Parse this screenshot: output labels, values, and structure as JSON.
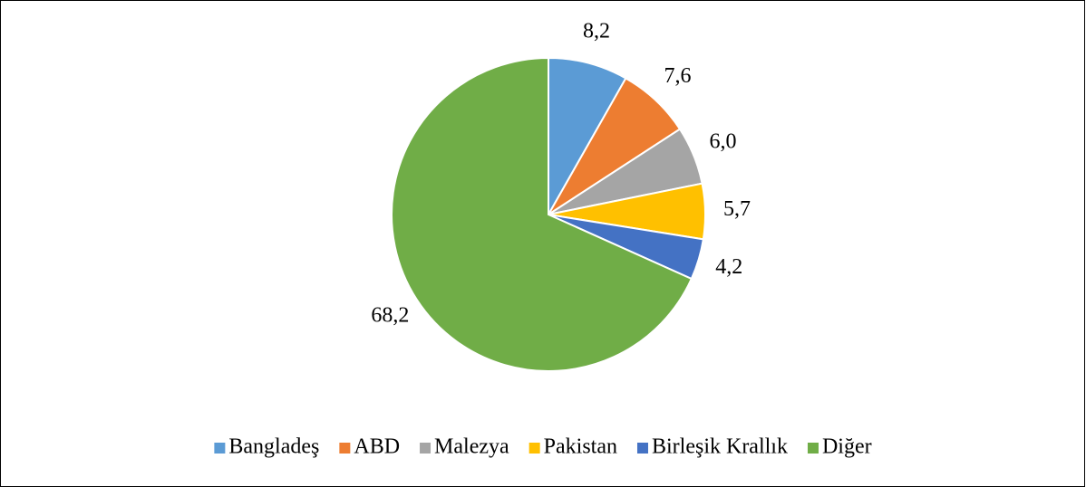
{
  "chart_data": {
    "type": "pie",
    "categories": [
      "Bangladeş",
      "ABD",
      "Malezya",
      "Pakistan",
      "Birleşik Krallık",
      "Diğer"
    ],
    "values": [
      8.2,
      7.6,
      6.0,
      5.7,
      4.2,
      68.2
    ],
    "value_labels": [
      "8,2",
      "7,6",
      "6,0",
      "5,7",
      "4,2",
      "68,2"
    ],
    "colors": [
      "#5b9bd5",
      "#ed7d31",
      "#a5a5a5",
      "#ffc000",
      "#4472c4",
      "#70ad47"
    ],
    "legend": "bottom"
  }
}
